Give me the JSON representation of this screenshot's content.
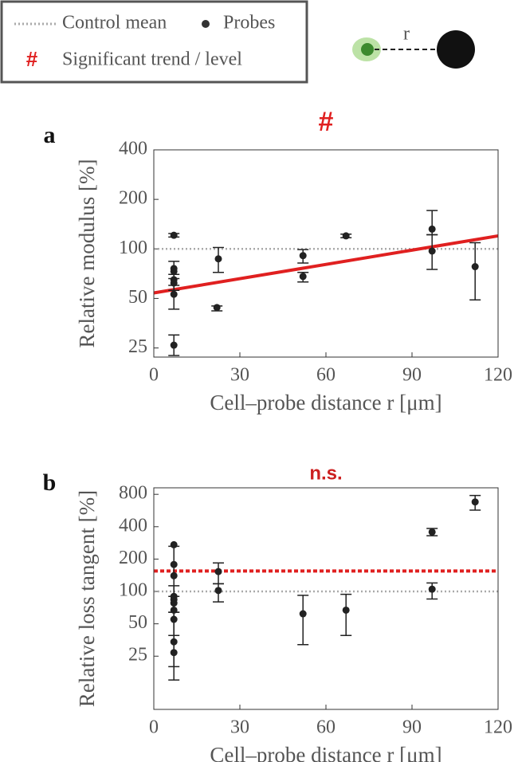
{
  "legend_note": {
    "symbol": "#",
    "text": "Significant trend / level"
  },
  "inset_label": "r",
  "chart_data": [
    {
      "type": "scatter",
      "panel": "a",
      "annotation": "#",
      "annotation_color": "#e02020",
      "xlabel": "Cell–probe distance r [μm]",
      "ylabel": "Relative modulus [%]",
      "xlim": [
        0,
        120
      ],
      "xticks": [
        0,
        30,
        60,
        90,
        120
      ],
      "ylim": [
        22,
        400
      ],
      "yticks": [
        25,
        50,
        100,
        200,
        400
      ],
      "log_y": true,
      "series": [
        {
          "name": "Probes",
          "color": "#222222",
          "x": [
            7,
            7,
            7,
            7,
            7,
            7,
            7,
            22.5,
            22,
            52,
            52,
            67,
            97,
            97,
            112
          ],
          "values": [
            121,
            76,
            73,
            65,
            62,
            53,
            26,
            87,
            44,
            91,
            68,
            120,
            132,
            97,
            78
          ],
          "lower": [
            118,
            66,
            null,
            56,
            null,
            43,
            22.5,
            72,
            42,
            82,
            63,
            117,
            122,
            75,
            49
          ],
          "upper": [
            124,
            84,
            null,
            70,
            null,
            60,
            30,
            102,
            45,
            99,
            72,
            123,
            171,
            122,
            109
          ]
        }
      ],
      "control_mean": {
        "name": "Control mean",
        "value": 100,
        "color": "#aaaaaa"
      },
      "fit": {
        "x": [
          0,
          120
        ],
        "values": [
          54,
          120
        ],
        "color": "#e02020"
      }
    },
    {
      "type": "scatter",
      "panel": "b",
      "annotation": "n.s.",
      "annotation_color": "#cc2020",
      "xlabel": "Cell–probe distance r [μm]",
      "ylabel": "Relative loss tangent [%]",
      "xlim": [
        0,
        120
      ],
      "xticks": [
        0,
        30,
        60,
        90,
        120
      ],
      "ylim": [
        8,
        920
      ],
      "yticks": [
        25,
        50,
        100,
        200,
        400,
        800
      ],
      "log_y": true,
      "series": [
        {
          "name": "Probes",
          "color": "#222222",
          "x": [
            7,
            7,
            7,
            7,
            7,
            7,
            7,
            7,
            7,
            7,
            22.5,
            22.5,
            52,
            67,
            97,
            97,
            112
          ],
          "values": [
            272,
            178,
            140,
            90,
            84,
            78,
            67,
            55,
            34,
            27,
            153,
            102,
            62,
            67,
            357,
            105,
            680
          ],
          "lower": [
            null,
            null,
            20,
            64,
            null,
            null,
            15,
            39,
            null,
            null,
            118,
            80,
            32,
            39,
            330,
            85,
            570
          ],
          "upper": [
            null,
            null,
            263,
            113,
            null,
            null,
            90,
            64,
            null,
            null,
            184,
            118,
            92,
            94,
            385,
            120,
            780
          ]
        }
      ],
      "control_mean": {
        "name": "Control mean",
        "value": 100,
        "color": "#aaaaaa"
      },
      "group_mean": {
        "value": 155,
        "color": "#e02020"
      }
    }
  ]
}
